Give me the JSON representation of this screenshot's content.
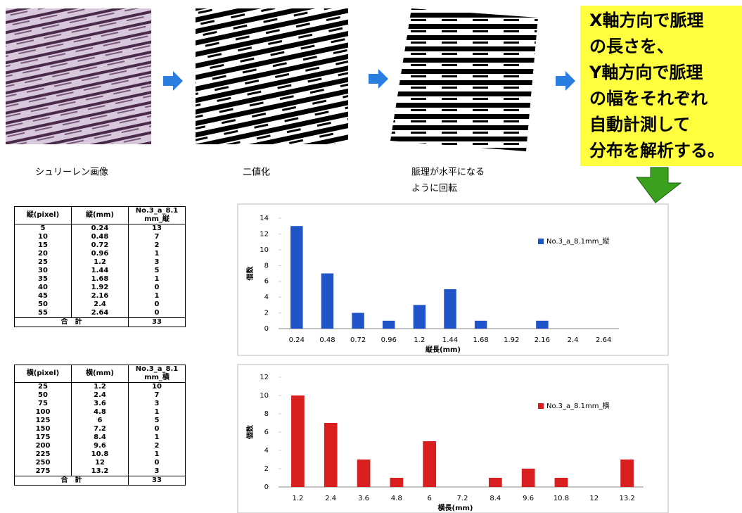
{
  "images": {
    "captions": [
      "シュリーレン画像",
      "二値化",
      "脈理が水平になる",
      "ように回転"
    ]
  },
  "callout": {
    "lines": [
      "X軸方向で脈理",
      "の長さを、",
      "Y軸方向で脈理",
      "の幅をそれぞれ",
      "自動計測して",
      "分布を解析する。"
    ]
  },
  "tables": [
    {
      "header": [
        "縦(pixel)",
        "縦(mm)",
        "No.3_a_8.1 mm_縦"
      ],
      "rows": [
        [
          "5",
          "0.24",
          "13"
        ],
        [
          "10",
          "0.48",
          "7"
        ],
        [
          "15",
          "0.72",
          "2"
        ],
        [
          "20",
          "0.96",
          "1"
        ],
        [
          "25",
          "1.2",
          "3"
        ],
        [
          "30",
          "1.44",
          "5"
        ],
        [
          "35",
          "1.68",
          "1"
        ],
        [
          "40",
          "1.92",
          "0"
        ],
        [
          "45",
          "2.16",
          "1"
        ],
        [
          "50",
          "2.4",
          "0"
        ],
        [
          "55",
          "2.64",
          "0"
        ]
      ],
      "total": [
        "合　計",
        "33"
      ]
    },
    {
      "header": [
        "横(pixel)",
        "横(mm)",
        "No.3_a_8.1 mm_横"
      ],
      "rows": [
        [
          "25",
          "1.2",
          "10"
        ],
        [
          "50",
          "2.4",
          "7"
        ],
        [
          "75",
          "3.6",
          "3"
        ],
        [
          "100",
          "4.8",
          "1"
        ],
        [
          "125",
          "6",
          "5"
        ],
        [
          "150",
          "7.2",
          "0"
        ],
        [
          "175",
          "8.4",
          "1"
        ],
        [
          "200",
          "9.6",
          "2"
        ],
        [
          "225",
          "10.8",
          "1"
        ],
        [
          "250",
          "12",
          "0"
        ],
        [
          "275",
          "13.2",
          "3"
        ]
      ],
      "total": [
        "合　計",
        "33"
      ]
    }
  ],
  "chart_data": [
    {
      "type": "bar",
      "xlabel": "縦長(mm)",
      "ylabel": "個数",
      "categories": [
        "0.24",
        "0.48",
        "0.72",
        "0.96",
        "1.2",
        "1.44",
        "1.68",
        "1.92",
        "2.16",
        "2.4",
        "2.64"
      ],
      "series": [
        {
          "name": "No.3_a_8.1mm_縦",
          "color": "#1f55c8",
          "values": [
            13,
            7,
            2,
            1,
            3,
            5,
            1,
            0,
            1,
            0,
            0
          ]
        }
      ],
      "ylim": [
        0,
        14
      ],
      "yticks": [
        0,
        2,
        4,
        6,
        8,
        10,
        12,
        14
      ],
      "grid": false,
      "legend": "right"
    },
    {
      "type": "bar",
      "xlabel": "横長(mm)",
      "ylabel": "個数",
      "categories": [
        "1.2",
        "2.4",
        "3.6",
        "4.8",
        "6",
        "7.2",
        "8.4",
        "9.6",
        "10.8",
        "12",
        "13.2"
      ],
      "series": [
        {
          "name": "No.3_a_8.1mm_横",
          "color": "#d81e1e",
          "values": [
            10,
            7,
            3,
            1,
            5,
            0,
            1,
            2,
            1,
            0,
            3
          ]
        }
      ],
      "ylim": [
        0,
        12
      ],
      "yticks": [
        0,
        2,
        4,
        6,
        8,
        10,
        12
      ],
      "grid": false,
      "legend": "right"
    }
  ]
}
